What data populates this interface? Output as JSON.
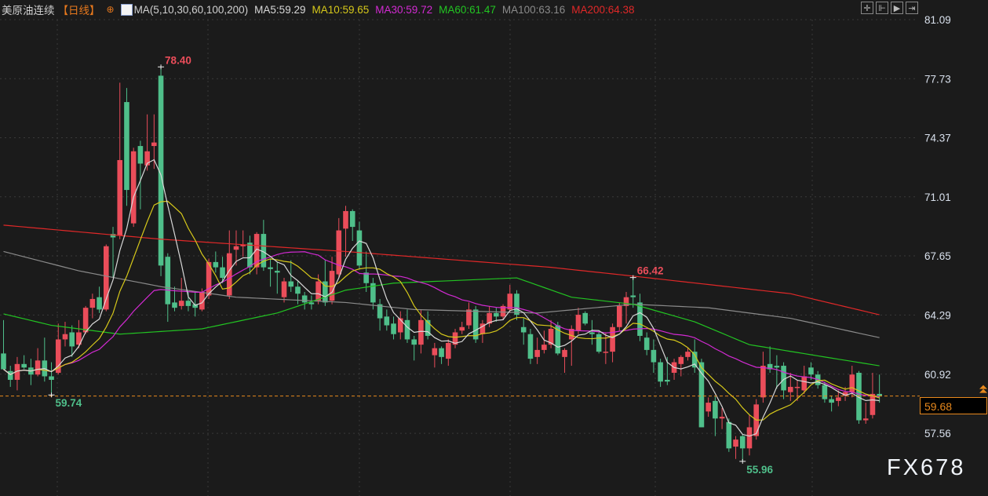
{
  "header": {
    "title": "美原油连续",
    "period": "【日线】",
    "settings_icon": "circle-settings-icon",
    "ma_label": "MA(5,10,30,60,100,200)",
    "ma_values": [
      {
        "text": "MA5:59.29",
        "color": "#d8d8d8"
      },
      {
        "text": "MA10:59.65",
        "color": "#d6c81a"
      },
      {
        "text": "MA30:59.72",
        "color": "#d22ad2"
      },
      {
        "text": "MA60:61.47",
        "color": "#22c422"
      },
      {
        "text": "MA100:63.16",
        "color": "#8a8a8a"
      },
      {
        "text": "MA200:64.38",
        "color": "#e02828"
      }
    ]
  },
  "toolbar": {
    "icons": [
      "crosshair-icon",
      "zoom-range-icon",
      "play-step-icon",
      "exit-icon"
    ]
  },
  "watermark": "FX678",
  "chart_data": {
    "type": "candlestick",
    "ylim": [
      54.6,
      82.2
    ],
    "y_ticks": [
      "81.09",
      "77.73",
      "74.37",
      "71.01",
      "67.65",
      "64.29",
      "60.92",
      "57.56"
    ],
    "colors": {
      "up": "#ea4d5a",
      "down": "#4fbf8a",
      "ma5": "#d8d8d8",
      "ma10": "#d6c81a",
      "ma30": "#d22ad2",
      "ma60": "#22c422",
      "ma100": "#8a8a8a",
      "ma200": "#e02828",
      "last_price": "#e8891d"
    },
    "last_price": "59.68",
    "annotations": [
      {
        "text": "78.40",
        "index": 23,
        "value": 78.4,
        "kind": "high"
      },
      {
        "text": "66.42",
        "index": 92,
        "value": 66.42,
        "kind": "high"
      },
      {
        "text": "59.74",
        "index": 7,
        "value": 59.74,
        "kind": "low"
      },
      {
        "text": "55.96",
        "index": 108,
        "value": 55.96,
        "kind": "low"
      }
    ],
    "ohlc": [
      [
        62.1,
        64.0,
        61.2,
        61.2
      ],
      [
        61.1,
        61.4,
        60.2,
        60.6
      ],
      [
        60.6,
        61.9,
        60.0,
        61.5
      ],
      [
        61.5,
        62.0,
        61.2,
        61.3
      ],
      [
        61.3,
        61.8,
        60.3,
        60.9
      ],
      [
        60.9,
        62.4,
        60.8,
        61.7
      ],
      [
        61.7,
        63.0,
        60.5,
        60.8
      ],
      [
        60.8,
        61.6,
        59.74,
        60.6
      ],
      [
        61.0,
        63.8,
        60.9,
        62.9
      ],
      [
        62.9,
        63.9,
        62.5,
        63.2
      ],
      [
        63.3,
        63.7,
        61.9,
        62.5
      ],
      [
        62.6,
        64.0,
        62.4,
        63.3
      ],
      [
        63.3,
        64.8,
        63.2,
        64.7
      ],
      [
        64.7,
        65.5,
        64.1,
        65.2
      ],
      [
        65.3,
        65.9,
        64.4,
        64.6
      ],
      [
        64.6,
        68.3,
        64.5,
        68.2
      ],
      [
        68.9,
        69.3,
        66.4,
        68.7
      ],
      [
        68.8,
        77.5,
        68.6,
        73.1
      ],
      [
        76.4,
        77.2,
        70.5,
        71.4
      ],
      [
        69.5,
        73.8,
        69.3,
        73.6
      ],
      [
        73.9,
        74.2,
        70.3,
        72.9
      ],
      [
        72.8,
        75.7,
        72.5,
        73.6
      ],
      [
        73.9,
        75.7,
        72.6,
        74.1
      ],
      [
        77.9,
        78.4,
        66.5,
        67.1
      ],
      [
        67.6,
        67.8,
        63.9,
        64.9
      ],
      [
        65.0,
        65.9,
        64.5,
        64.7
      ],
      [
        64.8,
        66.4,
        64.6,
        65.1
      ],
      [
        65.1,
        65.6,
        64.5,
        64.8
      ],
      [
        64.9,
        65.6,
        64.2,
        64.7
      ],
      [
        64.6,
        65.8,
        64.5,
        65.6
      ],
      [
        65.4,
        67.5,
        65.2,
        67.3
      ],
      [
        67.3,
        67.9,
        66.7,
        67.0
      ],
      [
        67.0,
        67.6,
        66.1,
        66.4
      ],
      [
        65.4,
        69.1,
        65.2,
        67.8
      ],
      [
        68.0,
        69.1,
        67.1,
        68.2
      ],
      [
        68.2,
        69.1,
        67.6,
        68.3
      ],
      [
        68.4,
        68.8,
        66.6,
        67.0
      ],
      [
        67.0,
        69.0,
        66.6,
        68.9
      ],
      [
        68.9,
        69.7,
        66.8,
        67.0
      ],
      [
        67.0,
        67.5,
        65.9,
        66.9
      ],
      [
        66.8,
        67.3,
        65.5,
        66.7
      ],
      [
        65.3,
        66.4,
        65.0,
        66.2
      ],
      [
        66.2,
        67.4,
        65.6,
        65.9
      ],
      [
        65.9,
        66.2,
        64.9,
        65.5
      ],
      [
        65.4,
        65.6,
        64.6,
        65.0
      ],
      [
        65.0,
        65.4,
        64.6,
        64.9
      ],
      [
        65.1,
        66.6,
        64.9,
        66.2
      ],
      [
        66.2,
        67.4,
        64.8,
        65.0
      ],
      [
        65.1,
        67.6,
        64.9,
        66.8
      ],
      [
        66.6,
        69.8,
        66.4,
        69.1
      ],
      [
        69.2,
        70.5,
        67.6,
        70.2
      ],
      [
        70.2,
        70.3,
        68.5,
        69.3
      ],
      [
        69.1,
        69.6,
        66.9,
        67.1
      ],
      [
        66.7,
        67.9,
        65.6,
        66.1
      ],
      [
        66.1,
        66.4,
        64.6,
        65.0
      ],
      [
        64.9,
        65.2,
        63.4,
        64.1
      ],
      [
        64.2,
        64.6,
        63.4,
        63.7
      ],
      [
        63.8,
        64.2,
        62.9,
        63.2
      ],
      [
        63.3,
        64.5,
        62.9,
        64.1
      ],
      [
        64.0,
        64.6,
        62.7,
        62.9
      ],
      [
        62.9,
        63.1,
        61.7,
        62.6
      ],
      [
        62.6,
        64.6,
        62.1,
        64.0
      ],
      [
        64.0,
        64.5,
        62.9,
        63.1
      ],
      [
        62.0,
        62.7,
        61.3,
        62.4
      ],
      [
        62.4,
        62.5,
        61.5,
        61.9
      ],
      [
        61.8,
        62.9,
        61.4,
        62.7
      ],
      [
        62.6,
        63.5,
        62.4,
        63.3
      ],
      [
        63.4,
        63.9,
        63.2,
        63.6
      ],
      [
        63.7,
        65.0,
        63.5,
        64.6
      ],
      [
        64.6,
        64.8,
        62.7,
        62.9
      ],
      [
        63.2,
        64.0,
        62.7,
        63.8
      ],
      [
        63.8,
        64.8,
        63.6,
        64.4
      ],
      [
        64.4,
        64.7,
        63.9,
        64.2
      ],
      [
        64.2,
        64.9,
        64.0,
        64.8
      ],
      [
        64.6,
        66.0,
        64.4,
        65.5
      ],
      [
        65.5,
        65.7,
        64.0,
        64.3
      ],
      [
        63.6,
        64.1,
        62.6,
        63.3
      ],
      [
        63.2,
        63.5,
        61.5,
        61.8
      ],
      [
        61.9,
        63.0,
        61.5,
        62.3
      ],
      [
        62.3,
        63.4,
        62.1,
        62.6
      ],
      [
        62.6,
        64.0,
        62.4,
        63.5
      ],
      [
        63.7,
        63.9,
        62.0,
        62.1
      ],
      [
        61.9,
        62.4,
        61.0,
        62.3
      ],
      [
        62.9,
        63.7,
        61.4,
        63.5
      ],
      [
        63.4,
        64.7,
        63.2,
        64.3
      ],
      [
        64.4,
        64.5,
        63.7,
        63.8
      ],
      [
        63.3,
        64.0,
        62.6,
        63.2
      ],
      [
        63.2,
        63.4,
        62.1,
        62.2
      ],
      [
        62.2,
        63.3,
        61.5,
        62.2
      ],
      [
        62.2,
        63.8,
        61.6,
        63.6
      ],
      [
        63.6,
        65.0,
        63.4,
        64.8
      ],
      [
        64.8,
        65.6,
        63.8,
        65.3
      ],
      [
        65.4,
        66.42,
        64.7,
        65.3
      ],
      [
        65.0,
        65.5,
        62.8,
        63.1
      ],
      [
        63.0,
        63.3,
        62.0,
        62.3
      ],
      [
        62.3,
        62.9,
        61.0,
        61.6
      ],
      [
        61.6,
        61.8,
        60.2,
        60.5
      ],
      [
        60.6,
        61.9,
        60.3,
        60.5
      ],
      [
        61.0,
        61.8,
        60.6,
        61.6
      ],
      [
        61.5,
        62.0,
        60.8,
        61.9
      ],
      [
        61.9,
        62.4,
        61.7,
        62.2
      ],
      [
        62.2,
        62.9,
        61.0,
        61.3
      ],
      [
        61.6,
        61.8,
        57.9,
        57.9
      ],
      [
        58.8,
        59.6,
        58.5,
        59.3
      ],
      [
        59.4,
        59.7,
        57.4,
        58.4
      ],
      [
        58.4,
        59.0,
        57.8,
        58.5
      ],
      [
        58.2,
        58.4,
        56.5,
        56.7
      ],
      [
        56.8,
        57.4,
        56.1,
        57.2
      ],
      [
        57.4,
        57.5,
        55.96,
        56.7
      ],
      [
        56.7,
        58.6,
        56.3,
        57.9
      ],
      [
        57.4,
        59.5,
        57.2,
        59.2
      ],
      [
        59.6,
        62.2,
        59.3,
        61.4
      ],
      [
        61.5,
        62.5,
        61.0,
        61.2
      ],
      [
        61.4,
        62.0,
        60.1,
        61.3
      ],
      [
        61.4,
        61.6,
        59.5,
        60.0
      ],
      [
        59.9,
        61.0,
        59.4,
        60.2
      ],
      [
        60.2,
        60.6,
        59.4,
        60.2
      ],
      [
        60.0,
        61.4,
        59.8,
        60.8
      ],
      [
        61.3,
        61.6,
        60.6,
        60.9
      ],
      [
        60.9,
        61.1,
        60.1,
        60.3
      ],
      [
        60.3,
        60.5,
        59.3,
        59.5
      ],
      [
        59.5,
        59.7,
        58.8,
        59.3
      ],
      [
        59.4,
        60.0,
        59.1,
        59.6
      ],
      [
        59.7,
        60.2,
        59.4,
        59.9
      ],
      [
        59.9,
        61.4,
        59.6,
        60.9
      ],
      [
        61.0,
        61.1,
        58.1,
        58.3
      ],
      [
        58.3,
        59.3,
        58.1,
        58.4
      ],
      [
        58.6,
        61.0,
        58.4,
        59.8
      ],
      [
        59.8,
        60.9,
        59.3,
        59.68
      ]
    ],
    "ma_long": {
      "ma60": [
        [
          0,
          64.35
        ],
        [
          7,
          63.7
        ],
        [
          17,
          63.2
        ],
        [
          29,
          63.5
        ],
        [
          40,
          64.4
        ],
        [
          50,
          65.7
        ],
        [
          57,
          66.1
        ],
        [
          75,
          66.4
        ],
        [
          83,
          65.3
        ],
        [
          92,
          64.9
        ],
        [
          101,
          63.9
        ],
        [
          109,
          62.6
        ],
        [
          120,
          61.9
        ],
        [
          128,
          61.4
        ]
      ],
      "ma100": [
        [
          0,
          67.9
        ],
        [
          11,
          66.8
        ],
        [
          23,
          65.9
        ],
        [
          34,
          65.3
        ],
        [
          50,
          65.0
        ],
        [
          60,
          64.6
        ],
        [
          78,
          64.4
        ],
        [
          92,
          64.9
        ],
        [
          103,
          64.7
        ],
        [
          115,
          64.1
        ],
        [
          128,
          63.0
        ]
      ],
      "ma200": [
        [
          0,
          69.4
        ],
        [
          23,
          68.6
        ],
        [
          50,
          67.9
        ],
        [
          80,
          67.0
        ],
        [
          92,
          66.5
        ],
        [
          115,
          65.5
        ],
        [
          128,
          64.3
        ]
      ]
    }
  }
}
